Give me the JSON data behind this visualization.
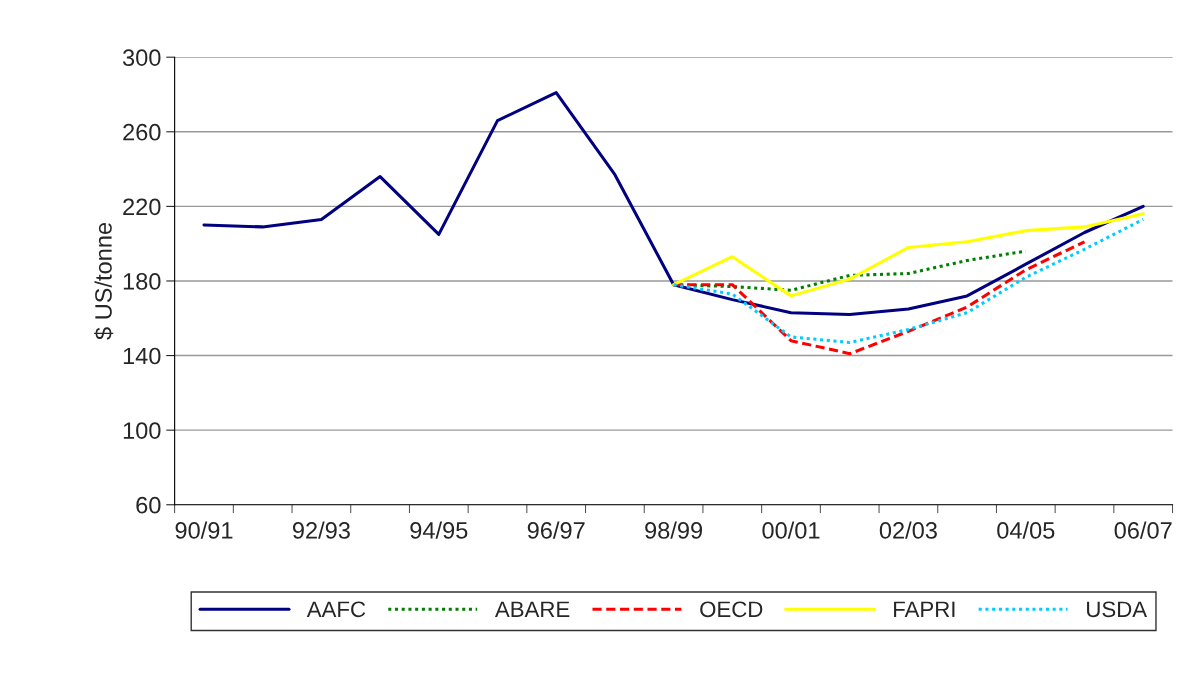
{
  "chart_data": {
    "type": "line",
    "ylabel": "$ US/tonne",
    "categories": [
      "90/91",
      null,
      "92/93",
      null,
      "94/95",
      null,
      "96/97",
      null,
      "98/99",
      null,
      "00/01",
      null,
      "02/03",
      null,
      "04/05",
      null,
      "06/07"
    ],
    "series": [
      {
        "name": "AAFC",
        "color": "#000080",
        "line_style": "solid",
        "values": [
          210,
          209,
          213,
          236,
          205,
          266,
          281,
          237,
          178,
          170,
          163,
          162,
          165,
          172,
          189,
          206,
          220
        ]
      },
      {
        "name": "ABARE",
        "color": "#008000",
        "line_style": "dotted",
        "values": [
          null,
          null,
          null,
          null,
          null,
          null,
          null,
          null,
          178,
          177,
          175,
          183,
          184,
          191,
          196,
          null,
          null
        ]
      },
      {
        "name": "OECD",
        "color": "#ff0000",
        "line_style": "dashed",
        "values": [
          null,
          null,
          null,
          null,
          null,
          null,
          null,
          null,
          178,
          178,
          148,
          141,
          153,
          166,
          186,
          201,
          null
        ]
      },
      {
        "name": "FAPRI",
        "color": "#ffff00",
        "line_style": "solid",
        "values": [
          null,
          null,
          null,
          null,
          null,
          null,
          null,
          null,
          178,
          193,
          172,
          181,
          198,
          201,
          207,
          209,
          216
        ]
      },
      {
        "name": "USDA",
        "color": "#00ccff",
        "line_style": "dotted",
        "values": [
          null,
          null,
          null,
          null,
          null,
          null,
          null,
          null,
          178,
          173,
          150,
          147,
          154,
          163,
          182,
          197,
          213
        ]
      }
    ],
    "ylim": [
      60,
      300
    ],
    "yticks": [
      60,
      100,
      140,
      180,
      220,
      260,
      300
    ],
    "grid": "y",
    "legend": "bottom",
    "marker": "none"
  }
}
